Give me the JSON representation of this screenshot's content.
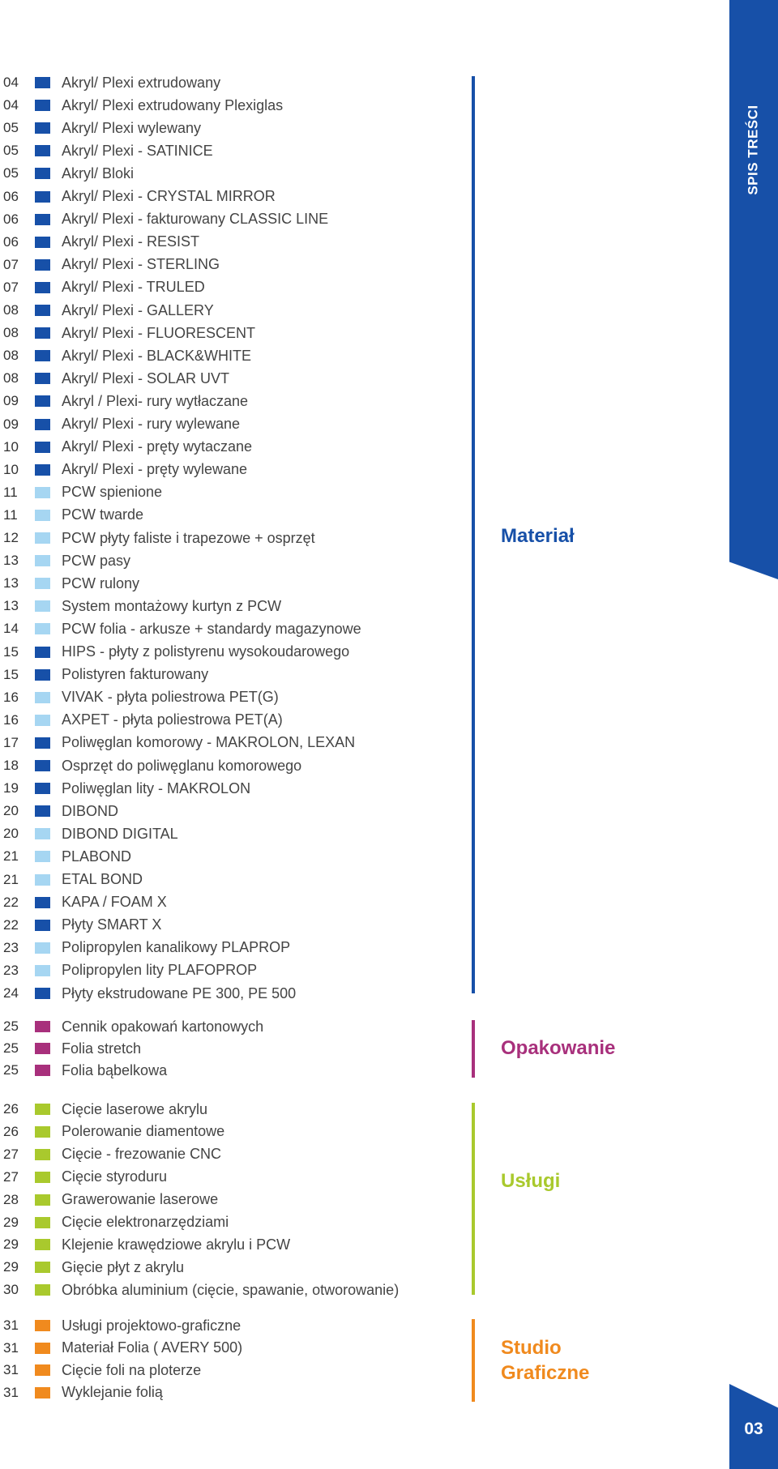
{
  "side_tab": {
    "label": "SPIS TREŚCI"
  },
  "page_number": "03",
  "colors": {
    "blue_dark": "#1750a8",
    "blue_light": "#a6d6f2",
    "magenta": "#a8307c",
    "lime": "#a9c92d",
    "orange": "#f08a1e"
  },
  "sections": [
    {
      "title": "Materiał",
      "title_color": "#1750a8",
      "bar_color": "#1750a8",
      "items": [
        {
          "page": "04",
          "label": "Akryl/ Plexi extrudowany",
          "swatch": "#1750a8"
        },
        {
          "page": "04",
          "label": "Akryl/ Plexi extrudowany Plexiglas",
          "swatch": "#1750a8"
        },
        {
          "page": "05",
          "label": "Akryl/ Plexi wylewany",
          "swatch": "#1750a8"
        },
        {
          "page": "05",
          "label": "Akryl/ Plexi - SATINICE",
          "swatch": "#1750a8"
        },
        {
          "page": "05",
          "label": "Akryl/ Bloki",
          "swatch": "#1750a8"
        },
        {
          "page": "06",
          "label": "Akryl/ Plexi - CRYSTAL MIRROR",
          "swatch": "#1750a8"
        },
        {
          "page": "06",
          "label": "Akryl/ Plexi - fakturowany CLASSIC LINE",
          "swatch": "#1750a8"
        },
        {
          "page": "06",
          "label": "Akryl/ Plexi - RESIST",
          "swatch": "#1750a8"
        },
        {
          "page": "07",
          "label": "Akryl/ Plexi - STERLING",
          "swatch": "#1750a8"
        },
        {
          "page": "07",
          "label": "Akryl/ Plexi - TRULED",
          "swatch": "#1750a8"
        },
        {
          "page": "08",
          "label": "Akryl/ Plexi - GALLERY",
          "swatch": "#1750a8"
        },
        {
          "page": "08",
          "label": "Akryl/ Plexi - FLUORESCENT",
          "swatch": "#1750a8"
        },
        {
          "page": "08",
          "label": "Akryl/ Plexi - BLACK&WHITE",
          "swatch": "#1750a8"
        },
        {
          "page": "08",
          "label": "Akryl/ Plexi - SOLAR UVT",
          "swatch": "#1750a8"
        },
        {
          "page": "09",
          "label": "Akryl / Plexi- rury wytłaczane",
          "swatch": "#1750a8"
        },
        {
          "page": "09",
          "label": "Akryl/ Plexi - rury wylewane",
          "swatch": "#1750a8"
        },
        {
          "page": "10",
          "label": "Akryl/ Plexi - pręty wytaczane",
          "swatch": "#1750a8"
        },
        {
          "page": "10",
          "label": "Akryl/ Plexi - pręty wylewane",
          "swatch": "#1750a8"
        },
        {
          "page": "11",
          "label": "PCW spienione",
          "swatch": "#a6d6f2"
        },
        {
          "page": "11",
          "label": "PCW twarde",
          "swatch": "#a6d6f2"
        },
        {
          "page": "12",
          "label": "PCW płyty faliste i trapezowe + osprzęt",
          "swatch": "#a6d6f2"
        },
        {
          "page": "13",
          "label": "PCW pasy",
          "swatch": "#a6d6f2"
        },
        {
          "page": "13",
          "label": "PCW rulony",
          "swatch": "#a6d6f2"
        },
        {
          "page": "13",
          "label": "System montażowy kurtyn z PCW",
          "swatch": "#a6d6f2"
        },
        {
          "page": "14",
          "label": "PCW folia - arkusze + standardy magazynowe",
          "swatch": "#a6d6f2"
        },
        {
          "page": "15",
          "label": "HIPS - płyty z polistyrenu wysokoudarowego",
          "swatch": "#1750a8"
        },
        {
          "page": "15",
          "label": "Polistyren fakturowany",
          "swatch": "#1750a8"
        },
        {
          "page": "16",
          "label": "VIVAK - płyta poliestrowa PET(G)",
          "swatch": "#a6d6f2"
        },
        {
          "page": "16",
          "label": "AXPET - płyta poliestrowa PET(A)",
          "swatch": "#a6d6f2"
        },
        {
          "page": "17",
          "label": "Poliwęglan komorowy - MAKROLON, LEXAN",
          "swatch": "#1750a8"
        },
        {
          "page": "18",
          "label": "Osprzęt do poliwęglanu komorowego",
          "swatch": "#1750a8"
        },
        {
          "page": "19",
          "label": "Poliwęglan lity - MAKROLON",
          "swatch": "#1750a8"
        },
        {
          "page": "20",
          "label": "DIBOND",
          "swatch": "#1750a8"
        },
        {
          "page": "20",
          "label": "DIBOND DIGITAL",
          "swatch": "#a6d6f2"
        },
        {
          "page": "21",
          "label": "PLABOND",
          "swatch": "#a6d6f2"
        },
        {
          "page": "21",
          "label": "ETAL BOND",
          "swatch": "#a6d6f2"
        },
        {
          "page": "22",
          "label": "KAPA / FOAM X",
          "swatch": "#1750a8"
        },
        {
          "page": "22",
          "label": "Płyty SMART X",
          "swatch": "#1750a8"
        },
        {
          "page": "23",
          "label": "Polipropylen kanalikowy PLAPROP",
          "swatch": "#a6d6f2"
        },
        {
          "page": "23",
          "label": "Polipropylen lity PLAFOPROP",
          "swatch": "#a6d6f2"
        },
        {
          "page": "24",
          "label": "Płyty ekstrudowane PE 300, PE 500",
          "swatch": "#1750a8"
        }
      ]
    },
    {
      "title": "Opakowanie",
      "title_color": "#a8307c",
      "bar_color": "#a8307c",
      "items": [
        {
          "page": "25",
          "label": "Cennik opakowań kartonowych",
          "swatch": "#a8307c"
        },
        {
          "page": "25",
          "label": "Folia stretch",
          "swatch": "#a8307c"
        },
        {
          "page": "25",
          "label": "Folia bąbelkowa",
          "swatch": "#a8307c"
        }
      ]
    },
    {
      "title": "Usługi",
      "title_color": "#a9c92d",
      "bar_color": "#a9c92d",
      "items": [
        {
          "page": "26",
          "label": "Cięcie laserowe akrylu",
          "swatch": "#a9c92d"
        },
        {
          "page": "26",
          "label": "Polerowanie diamentowe",
          "swatch": "#a9c92d"
        },
        {
          "page": "27",
          "label": "Cięcie - frezowanie CNC",
          "swatch": "#a9c92d"
        },
        {
          "page": "27",
          "label": "Cięcie styroduru",
          "swatch": "#a9c92d"
        },
        {
          "page": "28",
          "label": "Grawerowanie laserowe",
          "swatch": "#a9c92d"
        },
        {
          "page": "29",
          "label": "Cięcie elektronarzędziami",
          "swatch": "#a9c92d"
        },
        {
          "page": "29",
          "label": "Klejenie krawędziowe akrylu i PCW",
          "swatch": "#a9c92d"
        },
        {
          "page": "29",
          "label": "Gięcie płyt z akrylu",
          "swatch": "#a9c92d"
        },
        {
          "page": "30",
          "label": "Obróbka aluminium (cięcie, spawanie, otworowanie)",
          "swatch": "#a9c92d"
        }
      ]
    },
    {
      "title": "Studio Graficzne",
      "title_color": "#f08a1e",
      "bar_color": "#f08a1e",
      "items": [
        {
          "page": "31",
          "label": "Usługi projektowo-graficzne",
          "swatch": "#f08a1e"
        },
        {
          "page": "31",
          "label": "Materiał Folia ( AVERY 500)",
          "swatch": "#f08a1e"
        },
        {
          "page": "31",
          "label": "Cięcie foli na ploterze",
          "swatch": "#f08a1e"
        },
        {
          "page": "31",
          "label": "Wyklejanie folią",
          "swatch": "#f08a1e"
        }
      ]
    }
  ]
}
